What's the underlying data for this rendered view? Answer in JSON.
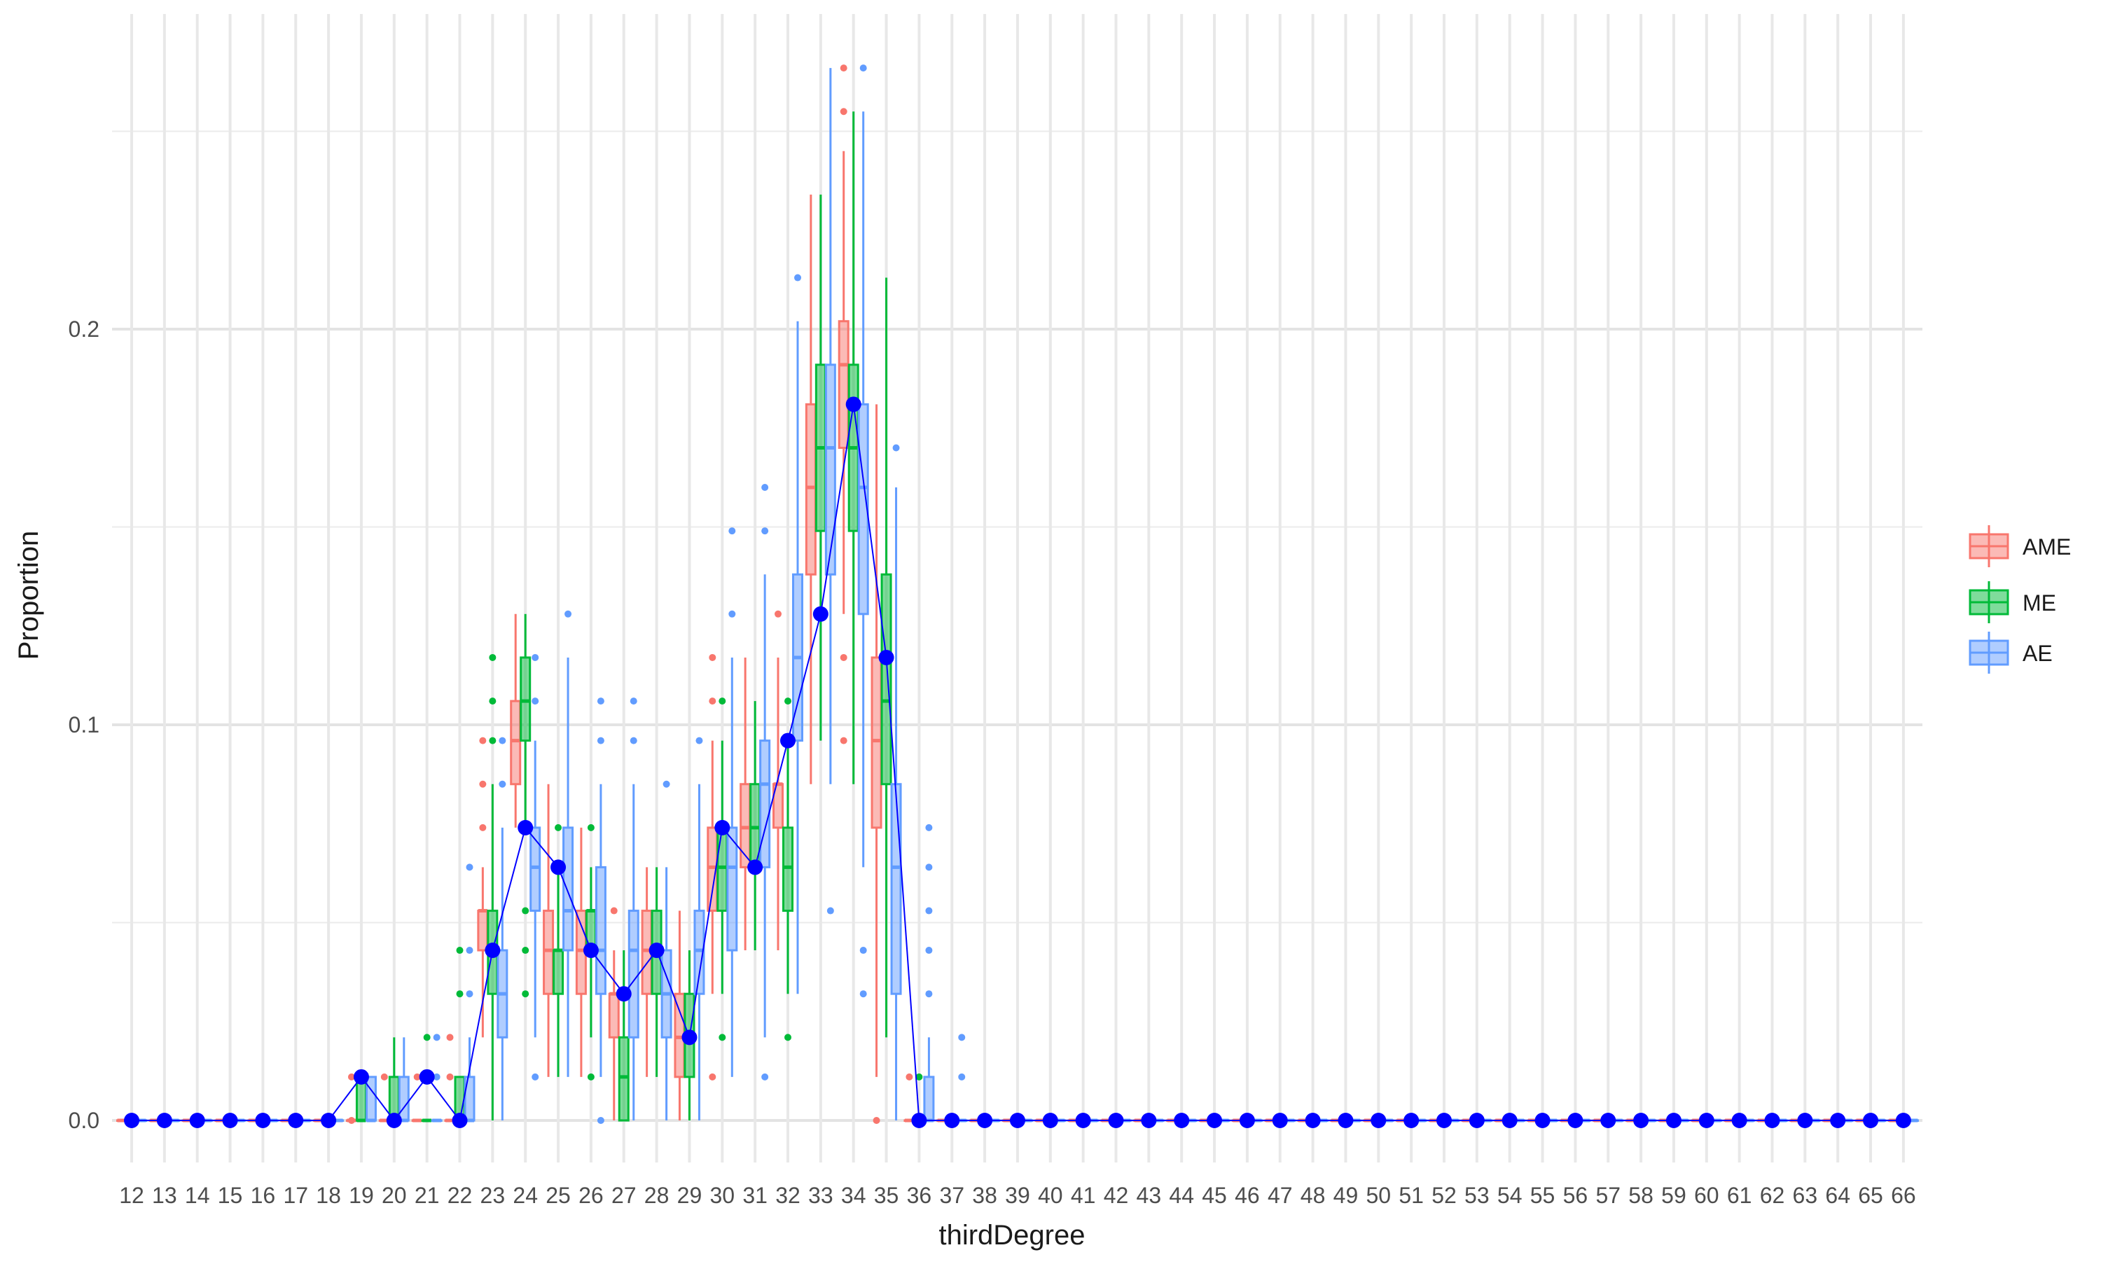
{
  "chart_data": {
    "type": "boxplot",
    "xlabel": "thirdDegree",
    "ylabel": "Proportion",
    "ylim": [
      -0.01,
      0.27
    ],
    "y_ticks": [
      0.0,
      0.1,
      0.2
    ],
    "y_tick_labels": [
      "0.0",
      "0.1",
      "0.2"
    ],
    "grid": true,
    "legend_position": "right",
    "categories": [
      "12",
      "13",
      "14",
      "15",
      "16",
      "17",
      "18",
      "19",
      "20",
      "21",
      "22",
      "23",
      "24",
      "25",
      "26",
      "27",
      "28",
      "29",
      "30",
      "31",
      "32",
      "33",
      "34",
      "35",
      "36",
      "37",
      "38",
      "39",
      "40",
      "41",
      "42",
      "43",
      "44",
      "45",
      "46",
      "47",
      "48",
      "49",
      "50",
      "51",
      "52",
      "53",
      "54",
      "55",
      "56",
      "57",
      "58",
      "59",
      "60",
      "61",
      "62",
      "63",
      "64",
      "65",
      "66"
    ],
    "series": [
      {
        "name": "AME",
        "color": "#F8766D",
        "boxes": {
          "19": {
            "q1": 0.0,
            "med": 0.0,
            "q3": 0.0,
            "lo": 0.0,
            "hi": 0.0,
            "out": [
              0.0,
              0.011
            ]
          },
          "20": {
            "q1": 0.0,
            "med": 0.0,
            "q3": 0.0,
            "lo": 0.0,
            "hi": 0.0,
            "out": [
              0.011
            ]
          },
          "21": {
            "q1": 0.0,
            "med": 0.0,
            "q3": 0.0,
            "lo": 0.0,
            "hi": 0.0,
            "out": [
              0.011
            ]
          },
          "22": {
            "q1": 0.0,
            "med": 0.0,
            "q3": 0.0,
            "lo": 0.0,
            "hi": 0.0,
            "out": [
              0.011,
              0.021
            ]
          },
          "23": {
            "q1": 0.043,
            "med": 0.053,
            "q3": 0.053,
            "lo": 0.021,
            "hi": 0.064,
            "out": [
              0.074,
              0.085,
              0.096
            ]
          },
          "24": {
            "q1": 0.085,
            "med": 0.096,
            "q3": 0.106,
            "lo": 0.074,
            "hi": 0.128,
            "out": []
          },
          "25": {
            "q1": 0.032,
            "med": 0.043,
            "q3": 0.053,
            "lo": 0.011,
            "hi": 0.085,
            "out": []
          },
          "26": {
            "q1": 0.032,
            "med": 0.043,
            "q3": 0.053,
            "lo": 0.011,
            "hi": 0.074,
            "out": []
          },
          "27": {
            "q1": 0.021,
            "med": 0.032,
            "q3": 0.032,
            "lo": 0.0,
            "hi": 0.043,
            "out": [
              0.053
            ]
          },
          "28": {
            "q1": 0.032,
            "med": 0.043,
            "q3": 0.053,
            "lo": 0.011,
            "hi": 0.064,
            "out": []
          },
          "29": {
            "q1": 0.011,
            "med": 0.021,
            "q3": 0.032,
            "lo": 0.0,
            "hi": 0.053,
            "out": []
          },
          "30": {
            "q1": 0.053,
            "med": 0.064,
            "q3": 0.074,
            "lo": 0.032,
            "hi": 0.096,
            "out": [
              0.011,
              0.106,
              0.117
            ]
          },
          "31": {
            "q1": 0.064,
            "med": 0.074,
            "q3": 0.085,
            "lo": 0.043,
            "hi": 0.117,
            "out": []
          },
          "32": {
            "q1": 0.074,
            "med": 0.085,
            "q3": 0.085,
            "lo": 0.043,
            "hi": 0.117,
            "out": [
              0.128
            ]
          },
          "33": {
            "q1": 0.138,
            "med": 0.16,
            "q3": 0.181,
            "lo": 0.085,
            "hi": 0.234,
            "out": []
          },
          "34": {
            "q1": 0.17,
            "med": 0.191,
            "q3": 0.202,
            "lo": 0.128,
            "hi": 0.245,
            "out": [
              0.096,
              0.117,
              0.255,
              0.266
            ]
          },
          "35": {
            "q1": 0.074,
            "med": 0.096,
            "q3": 0.117,
            "lo": 0.011,
            "hi": 0.181,
            "out": [
              0.0
            ]
          },
          "36": {
            "q1": 0.0,
            "med": 0.0,
            "q3": 0.0,
            "lo": 0.0,
            "hi": 0.0,
            "out": [
              0.011
            ]
          }
        }
      },
      {
        "name": "ME",
        "color": "#00BA38",
        "boxes": {
          "19": {
            "q1": 0.0,
            "med": 0.0,
            "q3": 0.011,
            "lo": 0.0,
            "hi": 0.011,
            "out": []
          },
          "20": {
            "q1": 0.0,
            "med": 0.0,
            "q3": 0.011,
            "lo": 0.0,
            "hi": 0.021,
            "out": []
          },
          "21": {
            "q1": 0.0,
            "med": 0.0,
            "q3": 0.0,
            "lo": 0.0,
            "hi": 0.0,
            "out": [
              0.011,
              0.021
            ]
          },
          "22": {
            "q1": 0.0,
            "med": 0.0,
            "q3": 0.011,
            "lo": 0.0,
            "hi": 0.011,
            "out": [
              0.032,
              0.043
            ]
          },
          "23": {
            "q1": 0.032,
            "med": 0.043,
            "q3": 0.053,
            "lo": 0.0,
            "hi": 0.085,
            "out": [
              0.096,
              0.106,
              0.117
            ]
          },
          "24": {
            "q1": 0.096,
            "med": 0.106,
            "q3": 0.117,
            "lo": 0.074,
            "hi": 0.128,
            "out": [
              0.032,
              0.043,
              0.053
            ]
          },
          "25": {
            "q1": 0.032,
            "med": 0.043,
            "q3": 0.043,
            "lo": 0.011,
            "hi": 0.064,
            "out": [
              0.074
            ]
          },
          "26": {
            "q1": 0.043,
            "med": 0.053,
            "q3": 0.053,
            "lo": 0.021,
            "hi": 0.064,
            "out": [
              0.011,
              0.074
            ]
          },
          "27": {
            "q1": 0.0,
            "med": 0.011,
            "q3": 0.021,
            "lo": 0.0,
            "hi": 0.043,
            "out": []
          },
          "28": {
            "q1": 0.032,
            "med": 0.043,
            "q3": 0.053,
            "lo": 0.011,
            "hi": 0.064,
            "out": []
          },
          "29": {
            "q1": 0.011,
            "med": 0.021,
            "q3": 0.032,
            "lo": 0.0,
            "hi": 0.043,
            "out": []
          },
          "30": {
            "q1": 0.053,
            "med": 0.064,
            "q3": 0.074,
            "lo": 0.032,
            "hi": 0.096,
            "out": [
              0.021,
              0.106
            ]
          },
          "31": {
            "q1": 0.064,
            "med": 0.074,
            "q3": 0.085,
            "lo": 0.043,
            "hi": 0.106,
            "out": []
          },
          "32": {
            "q1": 0.053,
            "med": 0.064,
            "q3": 0.074,
            "lo": 0.032,
            "hi": 0.096,
            "out": [
              0.021,
              0.106
            ]
          },
          "33": {
            "q1": 0.149,
            "med": 0.17,
            "q3": 0.191,
            "lo": 0.096,
            "hi": 0.234,
            "out": []
          },
          "34": {
            "q1": 0.149,
            "med": 0.17,
            "q3": 0.191,
            "lo": 0.085,
            "hi": 0.255,
            "out": []
          },
          "35": {
            "q1": 0.085,
            "med": 0.106,
            "q3": 0.138,
            "lo": 0.021,
            "hi": 0.213,
            "out": []
          },
          "36": {
            "q1": 0.0,
            "med": 0.0,
            "q3": 0.0,
            "lo": 0.0,
            "hi": 0.0,
            "out": [
              0.011
            ]
          }
        }
      },
      {
        "name": "AE",
        "color": "#619CFF",
        "boxes": {
          "19": {
            "q1": 0.0,
            "med": 0.0,
            "q3": 0.011,
            "lo": 0.0,
            "hi": 0.011,
            "out": []
          },
          "20": {
            "q1": 0.0,
            "med": 0.0,
            "q3": 0.011,
            "lo": 0.0,
            "hi": 0.021,
            "out": []
          },
          "21": {
            "q1": 0.0,
            "med": 0.0,
            "q3": 0.0,
            "lo": 0.0,
            "hi": 0.0,
            "out": [
              0.011,
              0.021
            ]
          },
          "22": {
            "q1": 0.0,
            "med": 0.0,
            "q3": 0.011,
            "lo": 0.0,
            "hi": 0.021,
            "out": [
              0.032,
              0.043,
              0.064
            ]
          },
          "23": {
            "q1": 0.021,
            "med": 0.032,
            "q3": 0.043,
            "lo": 0.0,
            "hi": 0.074,
            "out": [
              0.085,
              0.096
            ]
          },
          "24": {
            "q1": 0.053,
            "med": 0.064,
            "q3": 0.074,
            "lo": 0.021,
            "hi": 0.096,
            "out": [
              0.011,
              0.106,
              0.117
            ]
          },
          "25": {
            "q1": 0.043,
            "med": 0.053,
            "q3": 0.074,
            "lo": 0.011,
            "hi": 0.117,
            "out": [
              0.128
            ]
          },
          "26": {
            "q1": 0.032,
            "med": 0.043,
            "q3": 0.064,
            "lo": 0.011,
            "hi": 0.085,
            "out": [
              0.0,
              0.096,
              0.106
            ]
          },
          "27": {
            "q1": 0.021,
            "med": 0.043,
            "q3": 0.053,
            "lo": 0.0,
            "hi": 0.085,
            "out": [
              0.096,
              0.106
            ]
          },
          "28": {
            "q1": 0.021,
            "med": 0.032,
            "q3": 0.043,
            "lo": 0.0,
            "hi": 0.064,
            "out": [
              0.085
            ]
          },
          "29": {
            "q1": 0.032,
            "med": 0.043,
            "q3": 0.053,
            "lo": 0.0,
            "hi": 0.085,
            "out": [
              0.096
            ]
          },
          "30": {
            "q1": 0.043,
            "med": 0.064,
            "q3": 0.074,
            "lo": 0.011,
            "hi": 0.117,
            "out": [
              0.128,
              0.149
            ]
          },
          "31": {
            "q1": 0.064,
            "med": 0.085,
            "q3": 0.096,
            "lo": 0.021,
            "hi": 0.138,
            "out": [
              0.011,
              0.149,
              0.16
            ]
          },
          "32": {
            "q1": 0.096,
            "med": 0.117,
            "q3": 0.138,
            "lo": 0.032,
            "hi": 0.202,
            "out": [
              0.213
            ]
          },
          "33": {
            "q1": 0.138,
            "med": 0.17,
            "q3": 0.191,
            "lo": 0.085,
            "hi": 0.266,
            "out": [
              0.053
            ]
          },
          "34": {
            "q1": 0.128,
            "med": 0.16,
            "q3": 0.181,
            "lo": 0.064,
            "hi": 0.255,
            "out": [
              0.032,
              0.043,
              0.266
            ]
          },
          "35": {
            "q1": 0.032,
            "med": 0.064,
            "q3": 0.085,
            "lo": 0.0,
            "hi": 0.16,
            "out": [
              0.17
            ]
          },
          "36": {
            "q1": 0.0,
            "med": 0.0,
            "q3": 0.011,
            "lo": 0.0,
            "hi": 0.021,
            "out": [
              0.032,
              0.043,
              0.053,
              0.064,
              0.074
            ]
          },
          "37": {
            "q1": 0.0,
            "med": 0.0,
            "q3": 0.0,
            "lo": 0.0,
            "hi": 0.0,
            "out": [
              0.011,
              0.021
            ]
          }
        }
      }
    ],
    "overlay": {
      "type": "line",
      "color": "#0000FF",
      "values": [
        0,
        0,
        0,
        0,
        0,
        0,
        0,
        0.011,
        0,
        0.011,
        0,
        0.043,
        0.074,
        0.064,
        0.043,
        0.032,
        0.043,
        0.021,
        0.074,
        0.064,
        0.096,
        0.128,
        0.181,
        0.117,
        0,
        0,
        0,
        0,
        0,
        0,
        0,
        0,
        0,
        0,
        0,
        0,
        0,
        0,
        0,
        0,
        0,
        0,
        0,
        0,
        0,
        0,
        0,
        0,
        0,
        0,
        0,
        0,
        0,
        0,
        0
      ]
    }
  }
}
